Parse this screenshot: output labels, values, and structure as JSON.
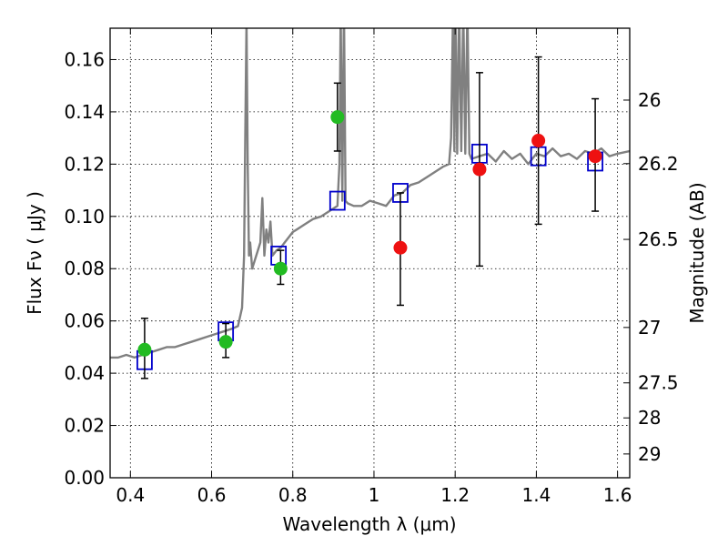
{
  "chart_data": {
    "type": "scatter",
    "title": "",
    "xlabel": "Wavelength  λ (μm)",
    "ylabel": "Flux  Fν  ( μJy )",
    "y2label": "Magnitude (AB)",
    "xlim": [
      0.35,
      1.63
    ],
    "ylim": [
      0.0,
      0.172
    ],
    "grid": true,
    "x_ticks": [
      0.4,
      0.6,
      0.8,
      1.0,
      1.2,
      1.4,
      1.6
    ],
    "x_tick_labels": [
      "0.4",
      "0.6",
      "0.8",
      "1",
      "1.2",
      "1.4",
      "1.6"
    ],
    "y_ticks": [
      0.0,
      0.02,
      0.04,
      0.06,
      0.08,
      0.1,
      0.12,
      0.14,
      0.16
    ],
    "y_tick_labels": [
      "0.00",
      "0.02",
      "0.04",
      "0.06",
      "0.08",
      "0.10",
      "0.12",
      "0.14",
      "0.16"
    ],
    "y2_ticks": [
      {
        "label": "26",
        "flux": 0.1445
      },
      {
        "label": "26.2",
        "flux": 0.1202
      },
      {
        "label": "26.5",
        "flux": 0.0912
      },
      {
        "label": "27",
        "flux": 0.0575
      },
      {
        "label": "27.5",
        "flux": 0.0363
      },
      {
        "label": "28",
        "flux": 0.0229
      },
      {
        "label": "29",
        "flux": 0.0091
      }
    ],
    "spectrum": {
      "color": "#808080",
      "x": [
        0.35,
        0.37,
        0.39,
        0.41,
        0.43,
        0.45,
        0.47,
        0.49,
        0.51,
        0.53,
        0.55,
        0.57,
        0.59,
        0.61,
        0.63,
        0.65,
        0.665,
        0.675,
        0.68,
        0.683,
        0.686,
        0.689,
        0.692,
        0.695,
        0.7,
        0.71,
        0.72,
        0.725,
        0.73,
        0.735,
        0.74,
        0.745,
        0.75,
        0.76,
        0.77,
        0.78,
        0.79,
        0.8,
        0.81,
        0.82,
        0.83,
        0.84,
        0.85,
        0.87,
        0.89,
        0.91,
        0.915,
        0.918,
        0.922,
        0.926,
        0.93,
        0.935,
        0.95,
        0.97,
        0.99,
        1.01,
        1.03,
        1.05,
        1.07,
        1.09,
        1.11,
        1.13,
        1.15,
        1.17,
        1.185,
        1.19,
        1.195,
        1.198,
        1.201,
        1.205,
        1.21,
        1.215,
        1.22,
        1.225,
        1.23,
        1.235,
        1.24,
        1.26,
        1.28,
        1.3,
        1.32,
        1.34,
        1.36,
        1.38,
        1.4,
        1.42,
        1.44,
        1.46,
        1.48,
        1.5,
        1.52,
        1.54,
        1.56,
        1.58,
        1.6,
        1.63
      ],
      "y": [
        0.046,
        0.046,
        0.047,
        0.046,
        0.047,
        0.048,
        0.049,
        0.05,
        0.05,
        0.051,
        0.052,
        0.053,
        0.054,
        0.055,
        0.056,
        0.057,
        0.058,
        0.065,
        0.085,
        0.13,
        0.175,
        0.12,
        0.085,
        0.09,
        0.08,
        0.085,
        0.09,
        0.107,
        0.085,
        0.095,
        0.09,
        0.098,
        0.085,
        0.087,
        0.088,
        0.09,
        0.092,
        0.094,
        0.095,
        0.096,
        0.097,
        0.098,
        0.099,
        0.1,
        0.102,
        0.104,
        0.12,
        0.18,
        0.106,
        0.18,
        0.106,
        0.105,
        0.104,
        0.104,
        0.106,
        0.105,
        0.104,
        0.108,
        0.109,
        0.112,
        0.113,
        0.115,
        0.117,
        0.119,
        0.12,
        0.13,
        0.18,
        0.125,
        0.18,
        0.124,
        0.18,
        0.125,
        0.18,
        0.124,
        0.18,
        0.124,
        0.122,
        0.123,
        0.124,
        0.121,
        0.125,
        0.122,
        0.124,
        0.12,
        0.124,
        0.123,
        0.126,
        0.123,
        0.124,
        0.122,
        0.125,
        0.124,
        0.126,
        0.123,
        0.124,
        0.125
      ]
    },
    "model_points": {
      "color": "#0000cc",
      "x": [
        0.435,
        0.635,
        0.765,
        0.91,
        1.065,
        1.26,
        1.405,
        1.545
      ],
      "y": [
        0.045,
        0.056,
        0.085,
        0.106,
        0.109,
        0.124,
        0.123,
        0.121
      ]
    },
    "green_points": {
      "color": "#22bb22",
      "x": [
        0.435,
        0.635,
        0.77,
        0.91
      ],
      "y": [
        0.049,
        0.052,
        0.08,
        0.138
      ],
      "err_low": [
        0.038,
        0.046,
        0.074,
        0.125
      ],
      "err_high": [
        0.061,
        0.059,
        0.087,
        0.151
      ]
    },
    "red_points": {
      "color": "#ee1111",
      "x": [
        1.065,
        1.26,
        1.405,
        1.545
      ],
      "y": [
        0.088,
        0.118,
        0.129,
        0.123
      ],
      "err_low": [
        0.066,
        0.081,
        0.097,
        0.102
      ],
      "err_high": [
        0.109,
        0.155,
        0.161,
        0.145
      ]
    }
  }
}
